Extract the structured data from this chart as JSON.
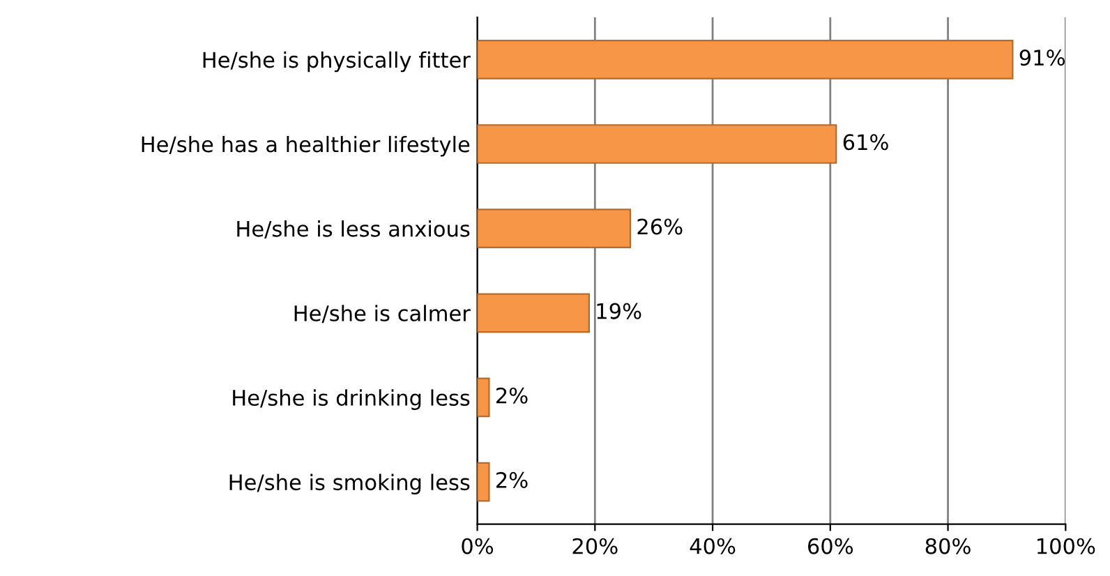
{
  "chart_data": {
    "type": "bar",
    "orientation": "horizontal",
    "categories": [
      "He/she is physically fitter",
      "He/she has a healthier lifestyle",
      "He/she is less anxious",
      "He/she is calmer",
      "He/she is drinking less",
      "He/she is smoking less"
    ],
    "values": [
      91,
      61,
      26,
      19,
      2,
      2
    ],
    "color": "#f79646",
    "value_labels": [
      "91%",
      "61%",
      "26%",
      "19%",
      "2%",
      "2%"
    ],
    "xlim": [
      0,
      100
    ],
    "xticks": [
      {
        "value": 0,
        "label": "0%"
      },
      {
        "value": 20,
        "label": "20%"
      },
      {
        "value": 40,
        "label": "40%"
      },
      {
        "value": 60,
        "label": "60%"
      },
      {
        "value": 80,
        "label": "80%"
      },
      {
        "value": 100,
        "label": "100%"
      }
    ],
    "grid": "x"
  }
}
